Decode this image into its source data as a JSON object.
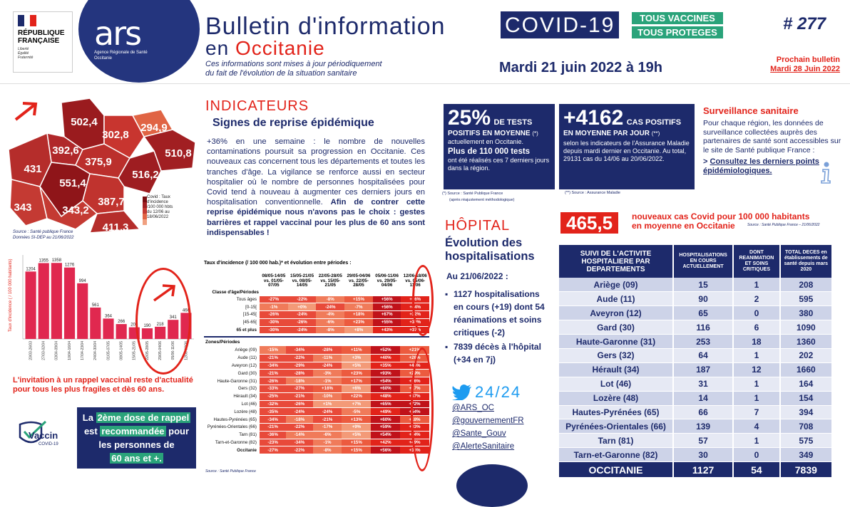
{
  "header": {
    "republique": [
      "RÉPUBLIQUE",
      "FRANÇAISE"
    ],
    "motto": [
      "Liberté",
      "Égalité",
      "Fraternité"
    ],
    "ars_logo": "ars",
    "ars_sub": "Agence Régionale de Santé",
    "ars_region": "Occitanie",
    "title_line1": "Bulletin d'information",
    "covid": "COVID-19",
    "vaccines_line1": "TOUS VACCINES",
    "vaccines_line2": "TOUS PROTEGES",
    "title_line2_prefix": "en",
    "title_line2_region": "Occitanie",
    "note_line1": "Ces informations sont mises à jour périodiquement",
    "note_line2": "du fait de l'évolution de la situation sanitaire",
    "date": "Mardi 21 juin 2022 à 19h",
    "issue": "# 277",
    "next_label": "Prochain bulletin",
    "next_date": "Mardi 28 Juin 2022"
  },
  "map": {
    "source_line1": "Source : Santé publique France",
    "source_line2": "Données SI-DEP au 21/06/2022",
    "legend_title": [
      "Covid : Taux",
      "d'incidence",
      "/100 000 hbts",
      "du 12/06 au",
      "18/06/2022"
    ],
    "values": [
      {
        "dept": "Lot",
        "value": "502,4"
      },
      {
        "dept": "Aveyron",
        "value": "302,8"
      },
      {
        "dept": "Lozère",
        "value": "294,9"
      },
      {
        "dept": "Tarn-et-Garonne",
        "value": "392,6"
      },
      {
        "dept": "Gard",
        "value": "510,8"
      },
      {
        "dept": "Gers",
        "value": "431"
      },
      {
        "dept": "Tarn",
        "value": "375,9"
      },
      {
        "dept": "Hérault",
        "value": "516,2"
      },
      {
        "dept": "Haute-Garonne",
        "value": "551,4"
      },
      {
        "dept": "Hautes-Pyrénées",
        "value": "343"
      },
      {
        "dept": "Aude",
        "value": "387,7"
      },
      {
        "dept": "Ariège",
        "value": "343,2"
      },
      {
        "dept": "Pyrénées-Orientales",
        "value": "411,3"
      }
    ]
  },
  "chart_data": {
    "type": "bar",
    "ylabel": "Taux d'incidence ( / 100 000 habitants)",
    "categories": [
      "20/03-26/03",
      "27/03-02/04",
      "03/04-09/04",
      "10/04-16/04",
      "17/04-23/04",
      "24/04-30/04",
      "01/05-07/05",
      "08/05-14/05",
      "15/05-21/05",
      "22/05-28/05",
      "29/05-04/06",
      "05/06-11/06",
      "12/06-18/06"
    ],
    "values": [
      1204,
      1355,
      1358,
      1276,
      994,
      561,
      364,
      266,
      208,
      190,
      218,
      341,
      466
    ],
    "ylim": [
      0,
      1450
    ]
  },
  "invitation": "L'invitation  à un rappel vaccinal reste d'actualité pour tous les plus fragiles et dès 60 ans.",
  "vaccin_logo": "Vaccin",
  "vaccin_logo_sub": "COVID-19",
  "rappel": {
    "p1": "La",
    "hl1": "2ème dose de rappel",
    "p2": "est",
    "hl2": "recommandée",
    "p3": "pour les personnes de",
    "hl3": "60 ans et +."
  },
  "indicators": {
    "title": "INDICATEURS",
    "subtitle": "Signes de reprise épidémique",
    "p1": "+36% en une semaine : le nombre de nouvelles contaminations poursuit sa progression en Occitanie. Ces nouveaux cas concernent tous les départements et toutes les tranches d'âge. La vigilance se renforce aussi en secteur hospitalier où le nombre de personnes hospitalisées pour Covid tend à nouveau à augmenter ces derniers jours en hospitalisation conventionnelle.",
    "p2": "Afin de contrer cette reprise épidémique nous n'avons pas le choix : gestes barrières et rappel vaccinal pour les plus de 60 ans sont indispensables !"
  },
  "incidence_table": {
    "caption": "Taux d'incidence (/ 100 000 hab.)* et évolution entre périodes :",
    "col0": "Classe d'âge/Périodes",
    "columns": [
      "08/05-14/05 vs. 01/05-07/05",
      "15/05-21/05 vs. 08/05-14/05",
      "22/05-28/05 vs. 15/05-21/05",
      "29/05-04/06 vs. 22/05-28/05",
      "05/06-11/06 vs. 29/05-04/06",
      "12/06-18/06 vs. 05/06-11/06"
    ],
    "age_rows": [
      {
        "label": "Tous âges",
        "values": [
          "-27%",
          "-22%",
          "-8%",
          "+15%",
          "+56%",
          "+36%"
        ]
      },
      {
        "label": "[0-15[",
        "values": [
          "-1%",
          "+0%",
          "-24%",
          "-7%",
          "+56%",
          "+44%"
        ]
      },
      {
        "label": "[15-45[",
        "values": [
          "-26%",
          "-24%",
          "-4%",
          "+18%",
          "+67%",
          "+32%"
        ]
      },
      {
        "label": "[45-65[",
        "values": [
          "-30%",
          "-26%",
          "-6%",
          "+23%",
          "+55%",
          "+39%"
        ]
      },
      {
        "label": "65 et plus",
        "values": [
          "-30%",
          "-24%",
          "-8%",
          "+8%",
          "+43%",
          "+37%"
        ]
      }
    ],
    "zones_header": "Zones/Périodes",
    "zone_rows": [
      {
        "label": "Ariège (09)",
        "values": [
          "-15%",
          "-34%",
          "-28%",
          "+11%",
          "+52%",
          "+21%"
        ]
      },
      {
        "label": "Aude (11)",
        "values": [
          "-21%",
          "-22%",
          "-11%",
          "+3%",
          "+40%",
          "+26%"
        ]
      },
      {
        "label": "Aveyron (12)",
        "values": [
          "-34%",
          "-29%",
          "-24%",
          "+5%",
          "+35%",
          "+46%"
        ]
      },
      {
        "label": "Gard (30)",
        "values": [
          "-21%",
          "-28%",
          "-3%",
          "+23%",
          "+93%",
          "+29%"
        ]
      },
      {
        "label": "Haute-Garonne (31)",
        "values": [
          "-26%",
          "-18%",
          "-1%",
          "+17%",
          "+54%",
          "+36%"
        ]
      },
      {
        "label": "Gers (32)",
        "values": [
          "-33%",
          "-27%",
          "+16%",
          "+6%",
          "+60%",
          "+17%"
        ]
      },
      {
        "label": "Hérault (34)",
        "values": [
          "-25%",
          "-21%",
          "-10%",
          "+22%",
          "+48%",
          "+47%"
        ]
      },
      {
        "label": "Lot (46)",
        "values": [
          "-32%",
          "-26%",
          "+1%",
          "+7%",
          "+65%",
          "+72%"
        ]
      },
      {
        "label": "Lozère (48)",
        "values": [
          "-35%",
          "-24%",
          "-24%",
          "-5%",
          "+49%",
          "+54%"
        ]
      },
      {
        "label": "Hautes-Pyrénées (65)",
        "values": [
          "-34%",
          "-18%",
          "-21%",
          "+13%",
          "+60%",
          "+18%"
        ]
      },
      {
        "label": "Pyrénées-Orientales (66)",
        "values": [
          "-21%",
          "-22%",
          "-17%",
          "+9%",
          "+59%",
          "+33%"
        ]
      },
      {
        "label": "Tarn (81)",
        "values": [
          "-36%",
          "-14%",
          "-6%",
          "+5%",
          "+54%",
          "+34%"
        ]
      },
      {
        "label": "Tarn-et-Garonne (82)",
        "values": [
          "-23%",
          "-34%",
          "-1%",
          "+15%",
          "+42%",
          "+49%"
        ]
      },
      {
        "label": "Occitanie",
        "values": [
          "-27%",
          "-22%",
          "-8%",
          "+15%",
          "+56%",
          "+36%"
        ]
      }
    ],
    "source": "Source : Santé Publique France"
  },
  "tests": {
    "big": "25%",
    "big_unit": "DE TESTS",
    "line1": "POSITIFS EN MOYENNE",
    "star": "(*)",
    "line2": "actuellement en Occitanie.",
    "strong": "Plus de 110 000 tests",
    "line3": "ont été réalisés ces 7 derniers jours dans la région.",
    "source1": "(*) Source : Santé Publique France",
    "source2": "(après réajustement méthodologique)"
  },
  "cases": {
    "big": "+4162",
    "big_unit": "CAS POSITIFS",
    "line1": "EN MOYENNE PAR JOUR",
    "star": "(**)",
    "line2": "selon les indicateurs de l'Assurance Maladie depuis mardi dernier en Occitanie. Au total, 29131 cas du 14/06 au 20/06/2022.",
    "source": "(**) Source : Assurance Maladie"
  },
  "surveillance": {
    "title": "Surveillance sanitaire",
    "text": "Pour chaque région, les données de surveillance collectées auprès des partenaires de santé sont accessibles sur le site de Santé publique France :",
    "link_prefix": ">",
    "link": "Consultez les derniers points épidémiologiques."
  },
  "new_cases": {
    "value": "465,5",
    "line1": "nouveaux cas Covid pour 100 000 habitants",
    "line2": "en moyenne en Occitanie",
    "source": "Source : Santé Publique France – 21/06/2022"
  },
  "hospital": {
    "title": "HÔPITAL",
    "subtitle": "Évolution des hospitalisations",
    "date": "Au 21/06/2022 :",
    "items": [
      "1127 hospitalisations en cours (+19) dont 54 réanimations et soins critiques (-2)",
      "7839 décès à l'hôpital (+34 en 7j)"
    ]
  },
  "twitter": {
    "title": "24/24",
    "handles": [
      "@ARS_OC",
      "@gouvernementFR",
      "@Sante_Gouv",
      "@AlerteSanitaire"
    ]
  },
  "dept_table": {
    "headers": [
      "SUIVI DE L'ACTIVITE HOSPITALIERE PAR DEPARTEMENTS",
      "HOSPITALISATIONS EN COURS ACTUELLEMENT",
      "DONT REANIMATION ET SOINS CRITIQUES",
      "TOTAL DECES en établissements de santé depuis mars 2020"
    ],
    "rows": [
      [
        "Ariège (09)",
        "15",
        "1",
        "208"
      ],
      [
        "Aude (11)",
        "90",
        "2",
        "595"
      ],
      [
        "Aveyron (12)",
        "65",
        "0",
        "380"
      ],
      [
        "Gard (30)",
        "116",
        "6",
        "1090"
      ],
      [
        "Haute-Garonne (31)",
        "253",
        "18",
        "1360"
      ],
      [
        "Gers (32)",
        "64",
        "1",
        "202"
      ],
      [
        "Hérault (34)",
        "187",
        "12",
        "1660"
      ],
      [
        "Lot (46)",
        "31",
        "1",
        "164"
      ],
      [
        "Lozère (48)",
        "14",
        "1",
        "154"
      ],
      [
        "Hautes-Pyrénées (65)",
        "66",
        "7",
        "394"
      ],
      [
        "Pyrénées-Orientales (66)",
        "139",
        "4",
        "708"
      ],
      [
        "Tarn (81)",
        "57",
        "1",
        "575"
      ],
      [
        "Tarn-et-Garonne (82)",
        "30",
        "0",
        "349"
      ]
    ],
    "total": [
      "OCCITANIE",
      "1127",
      "54",
      "7839"
    ]
  },
  "colors": {
    "navy": "#1d2a6b",
    "red": "#e2231a",
    "green": "#2aa37a",
    "bar": "#e0284f"
  }
}
